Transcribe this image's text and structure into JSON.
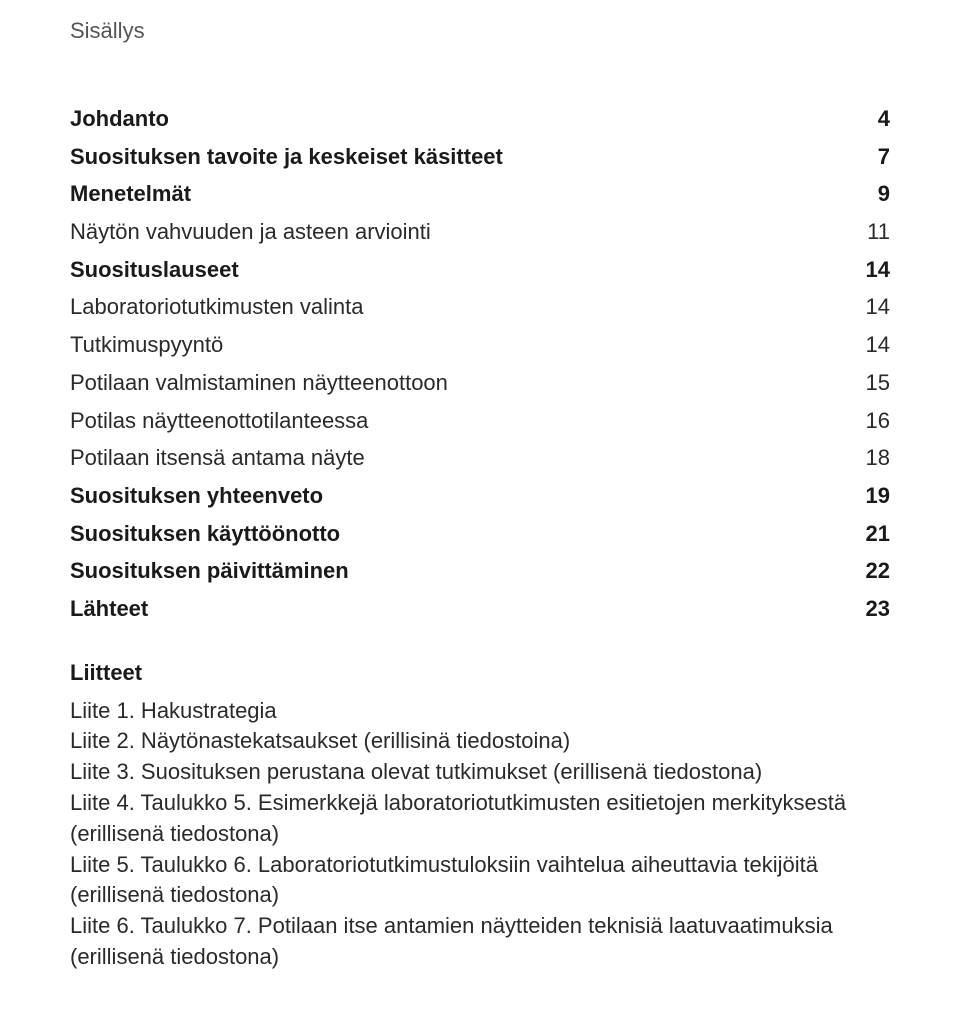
{
  "title": "Sisällys",
  "toc": [
    {
      "label": "Johdanto",
      "page": "4",
      "bold": true
    },
    {
      "label": "Suosituksen tavoite ja keskeiset käsitteet",
      "page": "7",
      "bold": true
    },
    {
      "label": "Menetelmät",
      "page": "9",
      "bold": true
    },
    {
      "label": "Näytön vahvuuden ja asteen arviointi",
      "page": "11",
      "bold": false
    },
    {
      "label": "Suosituslauseet",
      "page": "14",
      "bold": true
    },
    {
      "label": "Laboratoriotutkimusten valinta",
      "page": "14",
      "bold": false
    },
    {
      "label": "Tutkimuspyyntö",
      "page": "14",
      "bold": false
    },
    {
      "label": "Potilaan valmistaminen näytteenottoon",
      "page": "15",
      "bold": false
    },
    {
      "label": "Potilas näytteenottotilanteessa",
      "page": "16",
      "bold": false
    },
    {
      "label": "Potilaan itsensä antama näyte",
      "page": "18",
      "bold": false
    },
    {
      "label": "Suosituksen yhteenveto",
      "page": "19",
      "bold": true
    },
    {
      "label": "Suosituksen käyttöönotto",
      "page": "21",
      "bold": true
    },
    {
      "label": "Suosituksen päivittäminen",
      "page": "22",
      "bold": true
    },
    {
      "label": "Lähteet",
      "page": "23",
      "bold": true
    }
  ],
  "liitteet_heading": "Liitteet",
  "liitteet": [
    "Liite 1. Hakustrategia",
    "Liite 2. Näytönastekatsaukset (erillisinä tiedostoina)",
    "Liite 3. Suosituksen perustana olevat tutkimukset (erillisenä tiedostona)",
    "Liite 4. Taulukko 5. Esimerkkejä laboratoriotutkimusten esitietojen merkityksestä (erillisenä tiedostona)",
    "Liite 5. Taulukko 6. Laboratoriotutkimustuloksiin vaihtelua aiheuttavia tekijöitä (erillisenä tiedostona)",
    "Liite 6. Taulukko 7. Potilaan itse antamien näytteiden teknisiä laatuvaatimuksia (erillisenä tiedostona)"
  ]
}
